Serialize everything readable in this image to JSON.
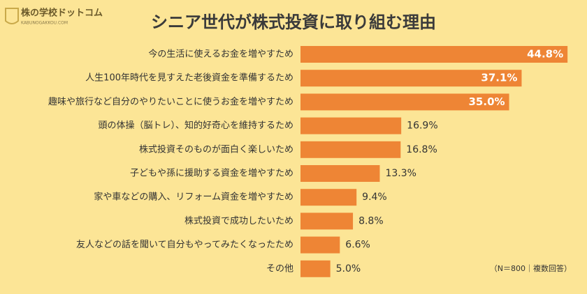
{
  "logo": {
    "name": "株の学校ドットコム",
    "subtitle": "KABUNOGAKKOU.COM"
  },
  "chart_data": {
    "type": "bar",
    "orientation": "horizontal",
    "title": "シニア世代が株式投資に取り組む理由",
    "categories": [
      "今の生活に使えるお金を増やすため",
      "人生100年時代を見すえた老後資金を準備するため",
      "趣味や旅行など自分のやりたいことに使うお金を増やすため",
      "頭の体操（脳トレ）、知的好奇心を維持するため",
      "株式投資そのものが面白く楽しいため",
      "子どもや孫に援助する資金を増やすため",
      "家や車などの購入、リフォーム資金を増やすため",
      "株式投資で成功したいため",
      "友人などの話を聞いて自分もやってみたくなったため",
      "その他"
    ],
    "values": [
      44.8,
      37.1,
      35.0,
      16.9,
      16.8,
      13.3,
      9.4,
      8.8,
      6.6,
      5.0
    ],
    "value_labels": [
      "44.8%",
      "37.1%",
      "35.0%",
      "16.9%",
      "16.8%",
      "13.3%",
      "9.4%",
      "8.8%",
      "6.6%",
      "5.0%"
    ],
    "color": "#ee8535",
    "note": "（N＝800｜複数回答）"
  }
}
